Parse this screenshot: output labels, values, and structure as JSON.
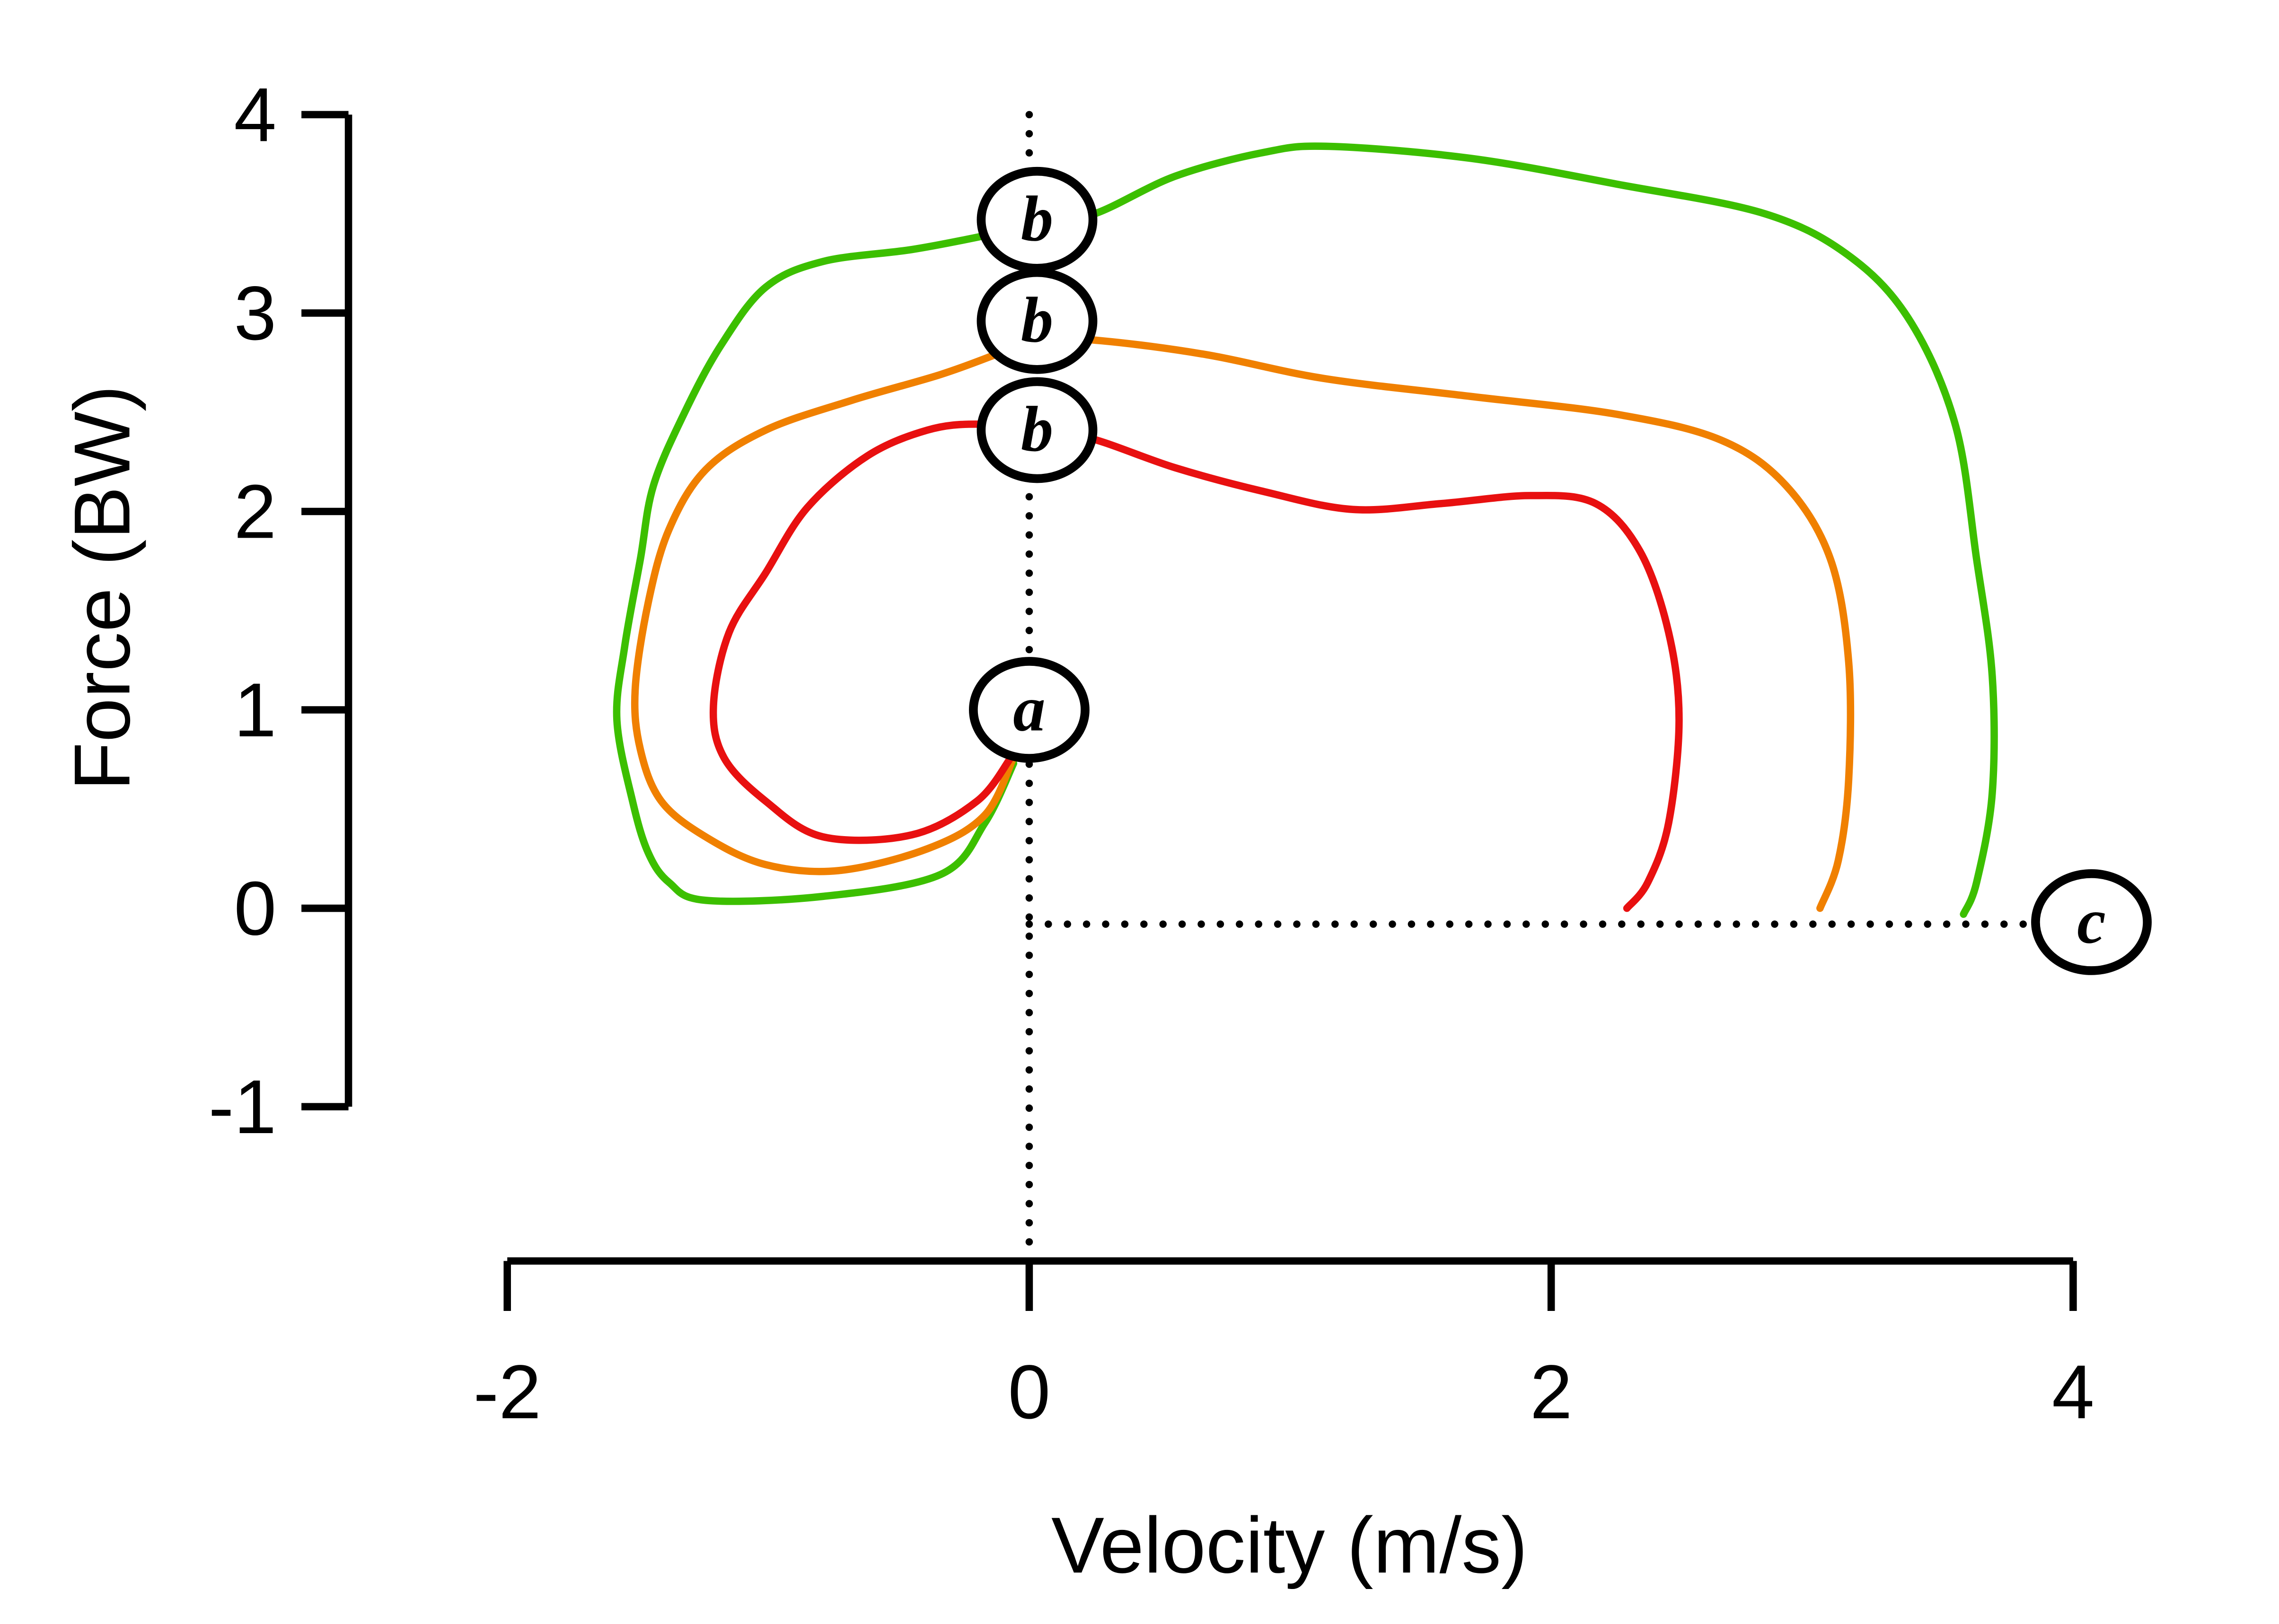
{
  "chart_data": {
    "type": "line",
    "title": "",
    "xlabel": "Velocity (m/s)",
    "ylabel": "Force (BW)",
    "xlim": [
      -2,
      4
    ],
    "ylim": [
      -1,
      4
    ],
    "xticks": [
      "-2",
      "0",
      "2",
      "4"
    ],
    "yticks": [
      "-1",
      "0",
      "1",
      "2",
      "3",
      "4"
    ],
    "grid": false,
    "series": [
      {
        "color": "#3cbf00",
        "points": [
          [
            -0.06,
            0.73
          ],
          [
            -0.17,
            0.43
          ],
          [
            -0.34,
            0.17
          ],
          [
            -0.79,
            0.06
          ],
          [
            -1.24,
            0.04
          ],
          [
            -1.38,
            0.13
          ],
          [
            -1.46,
            0.28
          ],
          [
            -1.52,
            0.54
          ],
          [
            -1.58,
            0.95
          ],
          [
            -1.55,
            1.32
          ],
          [
            -1.49,
            1.76
          ],
          [
            -1.44,
            2.13
          ],
          [
            -1.32,
            2.5
          ],
          [
            -1.18,
            2.84
          ],
          [
            -1.01,
            3.13
          ],
          [
            -0.79,
            3.26
          ],
          [
            -0.45,
            3.32
          ],
          [
            -0.17,
            3.39
          ],
          [
            0.03,
            3.45
          ],
          [
            0.25,
            3.5
          ],
          [
            0.56,
            3.69
          ],
          [
            0.9,
            3.81
          ],
          [
            1.15,
            3.84
          ],
          [
            1.69,
            3.78
          ],
          [
            2.25,
            3.65
          ],
          [
            2.82,
            3.5
          ],
          [
            3.15,
            3.28
          ],
          [
            3.38,
            2.95
          ],
          [
            3.55,
            2.43
          ],
          [
            3.63,
            1.76
          ],
          [
            3.69,
            1.17
          ],
          [
            3.69,
            0.58
          ],
          [
            3.63,
            0.13
          ],
          [
            3.58,
            -0.03
          ]
        ]
      },
      {
        "color": "#f08000",
        "points": [
          [
            -0.06,
            0.76
          ],
          [
            -0.17,
            0.47
          ],
          [
            -0.39,
            0.3
          ],
          [
            -0.73,
            0.19
          ],
          [
            -1.01,
            0.22
          ],
          [
            -1.24,
            0.36
          ],
          [
            -1.41,
            0.54
          ],
          [
            -1.49,
            0.8
          ],
          [
            -1.51,
            1.1
          ],
          [
            -1.46,
            1.54
          ],
          [
            -1.38,
            1.91
          ],
          [
            -1.24,
            2.21
          ],
          [
            -1.01,
            2.41
          ],
          [
            -0.68,
            2.56
          ],
          [
            -0.34,
            2.69
          ],
          [
            -0.11,
            2.8
          ],
          [
            0.03,
            2.87
          ],
          [
            0.28,
            2.86
          ],
          [
            0.68,
            2.79
          ],
          [
            1.13,
            2.67
          ],
          [
            1.69,
            2.58
          ],
          [
            2.25,
            2.49
          ],
          [
            2.65,
            2.36
          ],
          [
            2.9,
            2.13
          ],
          [
            3.07,
            1.76
          ],
          [
            3.14,
            1.24
          ],
          [
            3.14,
            0.65
          ],
          [
            3.1,
            0.24
          ],
          [
            3.03,
            0.0
          ]
        ]
      },
      {
        "color": "#e81010",
        "points": [
          [
            -0.07,
            0.76
          ],
          [
            -0.2,
            0.54
          ],
          [
            -0.45,
            0.37
          ],
          [
            -0.79,
            0.36
          ],
          [
            -1.01,
            0.54
          ],
          [
            -1.17,
            0.76
          ],
          [
            -1.21,
            1.02
          ],
          [
            -1.15,
            1.39
          ],
          [
            -1.01,
            1.69
          ],
          [
            -0.85,
            2.02
          ],
          [
            -0.62,
            2.28
          ],
          [
            -0.39,
            2.41
          ],
          [
            -0.2,
            2.44
          ],
          [
            0.0,
            2.41
          ],
          [
            0.23,
            2.37
          ],
          [
            0.56,
            2.22
          ],
          [
            0.9,
            2.1
          ],
          [
            1.24,
            2.01
          ],
          [
            1.58,
            2.04
          ],
          [
            1.92,
            2.08
          ],
          [
            2.17,
            2.04
          ],
          [
            2.34,
            1.8
          ],
          [
            2.45,
            1.39
          ],
          [
            2.49,
            0.95
          ],
          [
            2.45,
            0.43
          ],
          [
            2.37,
            0.13
          ],
          [
            2.29,
            0.0
          ]
        ]
      }
    ],
    "reference_lines": [
      {
        "style": "dotted",
        "from": [
          0,
          4
        ],
        "to": [
          0,
          -1.76
        ]
      },
      {
        "style": "dotted",
        "from": [
          0,
          -0.08
        ],
        "to": [
          3.9,
          -0.08
        ]
      }
    ],
    "annotations": [
      {
        "text": "a",
        "x": 0.0,
        "y": 1.0
      },
      {
        "text": "b",
        "x": 0.03,
        "y": 3.47
      },
      {
        "text": "b",
        "x": 0.03,
        "y": 2.96
      },
      {
        "text": "b",
        "x": 0.03,
        "y": 2.41
      },
      {
        "text": "c",
        "x": 4.07,
        "y": -0.07
      }
    ]
  }
}
